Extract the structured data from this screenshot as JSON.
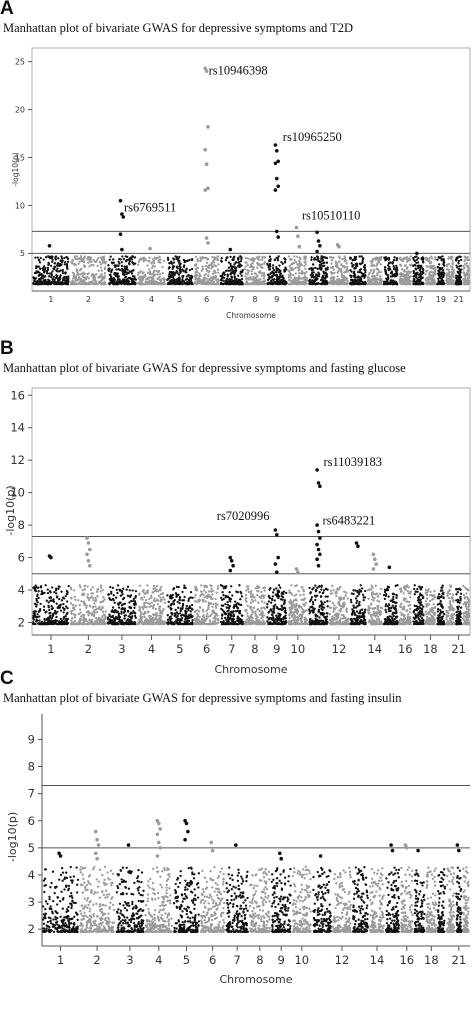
{
  "panels": [
    {
      "letter": "A",
      "title": "Manhattan plot of bivariate GWAS for depressive symptoms and T2D"
    },
    {
      "letter": "B",
      "title": "Manhattan plot of bivariate GWAS for depressive symptoms and fasting glucose"
    },
    {
      "letter": "C",
      "title": "Manhattan plot of bivariate GWAS for depressive symptoms and fasting insulin"
    }
  ],
  "colors": {
    "black": "#111111",
    "gray": "#9a9a9a",
    "line": "#555555"
  },
  "chart_data": [
    {
      "type": "scatter",
      "title": "Manhattan plot of bivariate GWAS for depressive symptoms and T2D",
      "xlabel": "Chromosome",
      "ylabel": "-log10(p)",
      "ylim": [
        1.5,
        26
      ],
      "yticks": [
        5,
        10,
        15,
        20,
        25
      ],
      "xtick_labels": [
        "1",
        "2",
        "3",
        "4",
        "5",
        "6",
        "7",
        "8",
        "9",
        "10",
        "11",
        "12",
        "13",
        "15",
        "17",
        "19",
        "21"
      ],
      "thresholds": [
        7.3,
        5
      ],
      "annotations": [
        {
          "text": "rs10946398",
          "chromosome": 6,
          "y": 24.3
        },
        {
          "text": "rs10965250",
          "chromosome": 9,
          "y": 16.3
        },
        {
          "text": "rs6769511",
          "chromosome": 3,
          "y": 10.5
        },
        {
          "text": "rs10510110",
          "chromosome": 10,
          "y": 7.7
        }
      ],
      "peaks": [
        {
          "chromosome": 1,
          "values": [
            5.8,
            4.6
          ]
        },
        {
          "chromosome": 3,
          "values": [
            10.5,
            9.1,
            8.8,
            7.0,
            5.4
          ]
        },
        {
          "chromosome": 4,
          "values": [
            5.5
          ]
        },
        {
          "chromosome": 6,
          "values": [
            24.3,
            24.0,
            18.2,
            15.8,
            14.3,
            11.8,
            11.6,
            6.6,
            6.1
          ]
        },
        {
          "chromosome": 7,
          "values": [
            5.4
          ]
        },
        {
          "chromosome": 9,
          "values": [
            16.3,
            15.7,
            14.6,
            14.4,
            12.8,
            12.0,
            11.6,
            7.3,
            6.7
          ]
        },
        {
          "chromosome": 10,
          "values": [
            7.7,
            6.8,
            5.7
          ]
        },
        {
          "chromosome": 11,
          "values": [
            7.2,
            6.3,
            5.8,
            5.2
          ]
        },
        {
          "chromosome": 12,
          "values": [
            5.9,
            5.7
          ]
        },
        {
          "chromosome": 17,
          "values": [
            5.0
          ]
        }
      ]
    },
    {
      "type": "scatter",
      "title": "Manhattan plot of bivariate GWAS for depressive symptoms and fasting glucose",
      "xlabel": "Chromosome",
      "ylabel": "-log10(p)",
      "ylim": [
        1.6,
        16.2
      ],
      "yticks": [
        2,
        4,
        6,
        8,
        10,
        12,
        14,
        16
      ],
      "xtick_labels": [
        "1",
        "2",
        "3",
        "4",
        "5",
        "6",
        "7",
        "8",
        "9",
        "10",
        "12",
        "14",
        "16",
        "18",
        "21"
      ],
      "thresholds": [
        7.3,
        5
      ],
      "annotations": [
        {
          "text": "rs11039183",
          "chromosome": 11,
          "y": 11.4
        },
        {
          "text": "rs7020996",
          "chromosome": 9,
          "y": 7.7
        },
        {
          "text": "rs6483221",
          "chromosome": 11,
          "y": 7.6
        }
      ],
      "peaks": [
        {
          "chromosome": 1,
          "values": [
            6.1,
            6.0
          ]
        },
        {
          "chromosome": 2,
          "values": [
            7.2,
            6.9,
            6.5,
            6.2,
            5.8,
            5.5
          ]
        },
        {
          "chromosome": 7,
          "values": [
            6.0,
            5.8,
            5.5,
            5.2
          ]
        },
        {
          "chromosome": 9,
          "values": [
            7.7,
            7.4,
            6.0,
            5.6,
            5.1
          ]
        },
        {
          "chromosome": 10,
          "values": [
            5.3,
            5.1
          ]
        },
        {
          "chromosome": 11,
          "values": [
            11.4,
            10.6,
            10.4,
            8.0,
            7.6,
            7.2,
            6.8,
            6.5,
            6.2,
            5.9,
            5.5
          ]
        },
        {
          "chromosome": 13,
          "values": [
            6.9,
            6.7
          ]
        },
        {
          "chromosome": 14,
          "values": [
            6.2,
            5.9,
            5.6,
            5.3
          ]
        },
        {
          "chromosome": 15,
          "values": [
            5.4
          ]
        }
      ]
    },
    {
      "type": "scatter",
      "title": "Manhattan plot of bivariate GWAS for depressive symptoms and fasting insulin",
      "xlabel": "Chromosome",
      "ylabel": "-log10(p)",
      "ylim": [
        1.6,
        9.2
      ],
      "yticks": [
        2,
        3,
        4,
        5,
        6,
        7,
        8,
        9
      ],
      "xtick_labels": [
        "1",
        "2",
        "3",
        "4",
        "5",
        "6",
        "7",
        "8",
        "9",
        "10",
        "12",
        "14",
        "16",
        "18",
        "21"
      ],
      "thresholds": [
        7.3,
        5
      ],
      "annotations": [],
      "peaks": [
        {
          "chromosome": 1,
          "values": [
            4.8,
            4.7
          ]
        },
        {
          "chromosome": 2,
          "values": [
            5.6,
            5.3,
            5.1,
            4.8,
            4.6
          ]
        },
        {
          "chromosome": 3,
          "values": [
            5.1,
            4.1
          ]
        },
        {
          "chromosome": 4,
          "values": [
            6.0,
            5.9,
            5.7,
            5.5,
            5.2,
            5.0,
            4.7
          ]
        },
        {
          "chromosome": 5,
          "values": [
            6.0,
            5.9,
            5.6,
            5.3
          ]
        },
        {
          "chromosome": 6,
          "values": [
            5.2,
            4.9
          ]
        },
        {
          "chromosome": 7,
          "values": [
            5.1
          ]
        },
        {
          "chromosome": 9,
          "values": [
            4.8,
            4.6
          ]
        },
        {
          "chromosome": 11,
          "values": [
            4.7
          ]
        },
        {
          "chromosome": 15,
          "values": [
            5.1,
            4.9
          ]
        },
        {
          "chromosome": 16,
          "values": [
            5.1,
            5.0
          ]
        },
        {
          "chromosome": 17,
          "values": [
            4.9
          ]
        },
        {
          "chromosome": 21,
          "values": [
            5.1,
            4.9
          ]
        }
      ]
    }
  ]
}
